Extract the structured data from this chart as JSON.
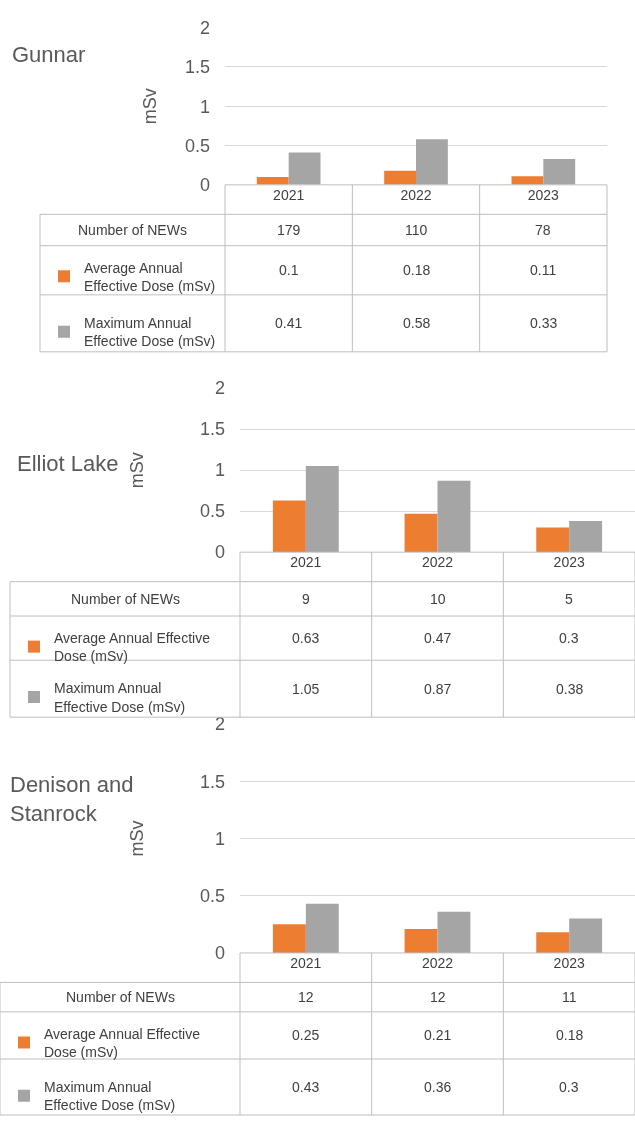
{
  "chart_data": [
    {
      "type": "bar",
      "title": "Gunnar",
      "ylabel": "mSv",
      "categories": [
        "2021",
        "2022",
        "2023"
      ],
      "ylim": [
        0,
        2
      ],
      "yticks": [
        0,
        0.5,
        1,
        1.5,
        2
      ],
      "grid": "y",
      "data_labels": true,
      "legend": "bottom left",
      "series": [
        {
          "name": "Average Annual Effective Dose (mSv)",
          "color": "#ed7d31",
          "values": [
            0.1,
            0.18,
            0.11
          ]
        },
        {
          "name": "Maximum Annual Effective Dose (mSv)",
          "color": "#a5a5a5",
          "values": [
            0.41,
            0.58,
            0.33
          ]
        }
      ],
      "annotations": [
        "Number of NEWs",
        "179",
        "110",
        "78"
      ]
    },
    {
      "type": "bar",
      "title": "Elliot Lake",
      "ylabel": "mSv",
      "categories": [
        "2021",
        "2022",
        "2023"
      ],
      "ylim": [
        0,
        2
      ],
      "yticks": [
        0,
        0.5,
        1,
        1.5,
        2
      ],
      "grid": "y",
      "data_labels": true,
      "legend": "bottom left",
      "series": [
        {
          "name": "Average Annual Effective Dose (mSv)",
          "color": "#ed7d31",
          "values": [
            0.63,
            0.47,
            0.3
          ]
        },
        {
          "name": "Maximum Annual Effective Dose (mSv)",
          "color": "#a5a5a5",
          "values": [
            1.05,
            0.87,
            0.38
          ]
        }
      ],
      "annotations": [
        "Number of NEWs",
        "9",
        "10",
        "5"
      ]
    },
    {
      "type": "bar",
      "title": "Denison and Stanrock",
      "ylabel": "mSv",
      "categories": [
        "2021",
        "2022",
        "2023"
      ],
      "ylim": [
        0,
        2
      ],
      "yticks": [
        0,
        0.5,
        1,
        1.5,
        2
      ],
      "grid": "y",
      "data_labels": true,
      "legend": "bottom left",
      "series": [
        {
          "name": "Average Annual Effective Dose (mSv)",
          "color": "#ed7d31",
          "values": [
            0.25,
            0.21,
            0.18
          ]
        },
        {
          "name": "Maximum Annual Effective Dose (mSv)",
          "color": "#a5a5a5",
          "values": [
            0.43,
            0.36,
            0.3
          ]
        }
      ],
      "annotations": [
        "Number of NEWs",
        "12",
        "12",
        "11"
      ]
    }
  ]
}
